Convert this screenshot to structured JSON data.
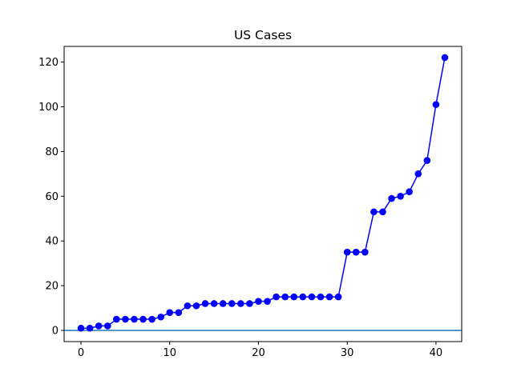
{
  "chart_data": {
    "type": "line",
    "title": "US Cases",
    "xlabel": "",
    "ylabel": "",
    "xlim": [
      -1.9,
      42.9
    ],
    "ylim": [
      -5,
      127
    ],
    "xticks": [
      0,
      10,
      20,
      30,
      40
    ],
    "yticks": [
      0,
      20,
      40,
      60,
      80,
      100,
      120
    ],
    "grid": false,
    "series": [
      {
        "color": "#0000ff",
        "marker": "circle",
        "x": [
          0,
          1,
          2,
          3,
          4,
          5,
          6,
          7,
          8,
          9,
          10,
          11,
          12,
          13,
          14,
          15,
          16,
          17,
          18,
          19,
          20,
          21,
          22,
          23,
          24,
          25,
          26,
          27,
          28,
          29,
          30,
          31,
          32,
          33,
          34,
          35,
          36,
          37,
          38,
          39,
          40,
          41
        ],
        "values": [
          1,
          1,
          2,
          2,
          5,
          5,
          5,
          5,
          5,
          6,
          8,
          8,
          11,
          11,
          12,
          12,
          12,
          12,
          12,
          12,
          13,
          13,
          15,
          15,
          15,
          15,
          15,
          15,
          15,
          15,
          35,
          35,
          35,
          53,
          53,
          59,
          60,
          62,
          70,
          76,
          101,
          122
        ]
      }
    ],
    "reference_line": {
      "orientation": "horizontal",
      "y": 0,
      "color": "#1f77b4"
    }
  }
}
